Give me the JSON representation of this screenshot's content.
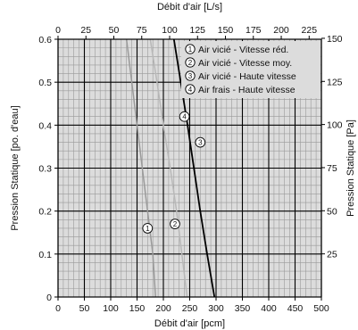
{
  "chart_data": {
    "type": "line",
    "xlabel_bottom": "Débit d'air [pcm]",
    "xlabel_top": "Débit d'air [L/s]",
    "ylabel_left": "Pression Statique [po. d'eau]",
    "ylabel_right": "Pression Statique [Pa]",
    "x_bottom_lim": [
      0,
      500
    ],
    "x_bottom_ticks": [
      "0",
      "50",
      "100",
      "150",
      "200",
      "250",
      "300",
      "350",
      "400",
      "450",
      "500"
    ],
    "y_left_lim": [
      0,
      0.6
    ],
    "y_left_ticks": [
      "0",
      "0.1",
      "0.2",
      "0.3",
      "0.4",
      "0.5",
      "0.6"
    ],
    "x_top_ticks": [
      "0",
      "25",
      "50",
      "75",
      "100",
      "125",
      "150",
      "175",
      "200",
      "225"
    ],
    "y_right_ticks": [
      "25",
      "50",
      "75",
      "100",
      "125",
      "150"
    ],
    "grid": true,
    "legend_position": "top-right",
    "series": [
      {
        "name": "Air vicié - Vitesse réd.",
        "marker": "1",
        "color": "#9a9a9a",
        "x": [
          130,
          140,
          150,
          160,
          170,
          180,
          185
        ],
        "y": [
          0.6,
          0.5,
          0.4,
          0.3,
          0.2,
          0.1,
          0
        ]
      },
      {
        "name": "Air vicié - Vitesse moy.",
        "marker": "2",
        "color": "#b8b8b8",
        "x": [
          175,
          188,
          200,
          213,
          225,
          235,
          245
        ],
        "y": [
          0.6,
          0.5,
          0.4,
          0.3,
          0.2,
          0.1,
          0
        ]
      },
      {
        "name": "Air vicié - Haute vitesse",
        "marker": "3",
        "color": "#000000",
        "x": [
          220,
          233,
          246,
          258,
          270,
          283,
          297
        ],
        "y": [
          0.6,
          0.5,
          0.4,
          0.3,
          0.2,
          0.1,
          0
        ]
      }
    ],
    "legend_only_series": [
      {
        "name": "Air frais - Haute vitesse",
        "marker": "4"
      }
    ],
    "curve_labels": [
      {
        "marker": "1",
        "x": 170,
        "y": 0.16
      },
      {
        "marker": "2",
        "x": 222,
        "y": 0.17
      },
      {
        "marker": "3",
        "x": 270,
        "y": 0.36
      },
      {
        "marker": "4",
        "x": 240,
        "y": 0.42
      }
    ]
  },
  "colors": {
    "plot_background": "#dcdcdc",
    "grid_major": "#000000",
    "grid_minor": "#9a9a9a"
  }
}
